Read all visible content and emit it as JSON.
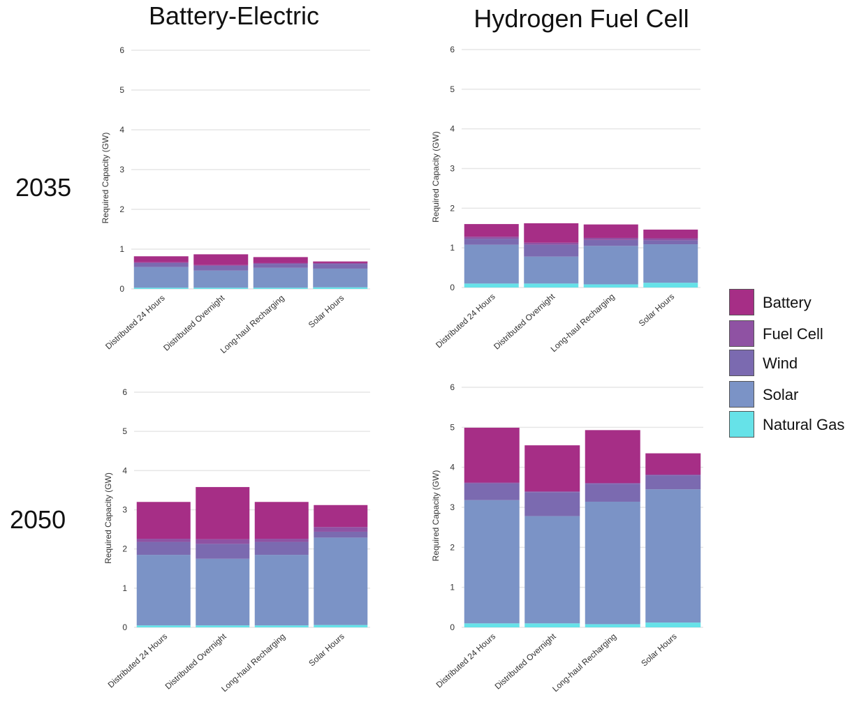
{
  "columns": {
    "left": "Battery-Electric",
    "right": "Hydrogen Fuel Cell"
  },
  "rows": {
    "top": "2035",
    "bottom": "2050"
  },
  "colors": {
    "Battery": "#a62e86",
    "Fuel Cell": "#8f52a3",
    "Wind": "#7b6ab0",
    "Solar": "#7b93c6",
    "Natural Gas": "#66e2e8"
  },
  "legend": [
    {
      "name": "Battery"
    },
    {
      "name": "Fuel Cell"
    },
    {
      "name": "Wind"
    },
    {
      "name": "Solar"
    },
    {
      "name": "Natural Gas"
    }
  ],
  "chart_data": [
    {
      "type": "bar",
      "stacked": true,
      "column": "Battery-Electric",
      "row": "2035",
      "ylabel": "Required Capacity (GW)",
      "ylim": [
        0,
        6
      ],
      "yticks": [
        0,
        1,
        2,
        3,
        4,
        5,
        6
      ],
      "categories": [
        "Distributed 24 Hours",
        "Distributed Overnight",
        "Long-haul Recharging",
        "Solar Hours"
      ],
      "series": [
        {
          "name": "Natural Gas",
          "values": [
            0.03,
            0.03,
            0.03,
            0.04
          ]
        },
        {
          "name": "Solar",
          "values": [
            0.52,
            0.43,
            0.5,
            0.47
          ]
        },
        {
          "name": "Wind",
          "values": [
            0.1,
            0.12,
            0.1,
            0.12
          ]
        },
        {
          "name": "Fuel Cell",
          "values": [
            0.02,
            0.02,
            0.02,
            0.02
          ]
        },
        {
          "name": "Battery",
          "values": [
            0.15,
            0.27,
            0.15,
            0.04
          ]
        }
      ]
    },
    {
      "type": "bar",
      "stacked": true,
      "column": "Hydrogen Fuel Cell",
      "row": "2035",
      "ylabel": "Required Capacity (GW)",
      "ylim": [
        0,
        6
      ],
      "yticks": [
        0,
        1,
        2,
        3,
        4,
        5,
        6
      ],
      "categories": [
        "Distributed 24 Hours",
        "Distributed Overnight",
        "Long-haul Recharging",
        "Solar Hours"
      ],
      "series": [
        {
          "name": "Natural Gas",
          "values": [
            0.1,
            0.1,
            0.08,
            0.12
          ]
        },
        {
          "name": "Solar",
          "values": [
            0.98,
            0.68,
            0.97,
            0.97
          ]
        },
        {
          "name": "Wind",
          "values": [
            0.15,
            0.3,
            0.15,
            0.1
          ]
        },
        {
          "name": "Fuel Cell",
          "values": [
            0.05,
            0.05,
            0.05,
            0.05
          ]
        },
        {
          "name": "Battery",
          "values": [
            0.32,
            0.49,
            0.34,
            0.22
          ]
        }
      ]
    },
    {
      "type": "bar",
      "stacked": true,
      "column": "Battery-Electric",
      "row": "2050",
      "ylabel": "Required Capacity (GW)",
      "ylim": [
        0,
        6
      ],
      "yticks": [
        0,
        1,
        2,
        3,
        4,
        5,
        6
      ],
      "categories": [
        "Distributed 24 Hours",
        "Distributed Overnight",
        "Long-haul Recharging",
        "Solar Hours"
      ],
      "series": [
        {
          "name": "Natural Gas",
          "values": [
            0.05,
            0.05,
            0.05,
            0.06
          ]
        },
        {
          "name": "Solar",
          "values": [
            1.8,
            1.7,
            1.8,
            2.23
          ]
        },
        {
          "name": "Wind",
          "values": [
            0.33,
            0.38,
            0.33,
            0.15
          ]
        },
        {
          "name": "Fuel Cell",
          "values": [
            0.08,
            0.12,
            0.08,
            0.12
          ]
        },
        {
          "name": "Battery",
          "values": [
            0.94,
            1.33,
            0.94,
            0.56
          ]
        }
      ]
    },
    {
      "type": "bar",
      "stacked": true,
      "column": "Hydrogen Fuel Cell",
      "row": "2050",
      "ylabel": "Required Capacity (GW)",
      "ylim": [
        0,
        6
      ],
      "yticks": [
        0,
        1,
        2,
        3,
        4,
        5,
        6
      ],
      "categories": [
        "Distributed 24 Hours",
        "Distributed Overnight",
        "Long-haul Recharging",
        "Solar Hours"
      ],
      "series": [
        {
          "name": "Natural Gas",
          "values": [
            0.1,
            0.1,
            0.08,
            0.12
          ]
        },
        {
          "name": "Solar",
          "values": [
            3.08,
            2.68,
            3.06,
            3.33
          ]
        },
        {
          "name": "Wind",
          "values": [
            0.42,
            0.6,
            0.45,
            0.35
          ]
        },
        {
          "name": "Fuel Cell",
          "values": [
            0.02,
            0.02,
            0.02,
            0.02
          ]
        },
        {
          "name": "Battery",
          "values": [
            1.37,
            1.15,
            1.32,
            0.53
          ]
        }
      ]
    }
  ]
}
